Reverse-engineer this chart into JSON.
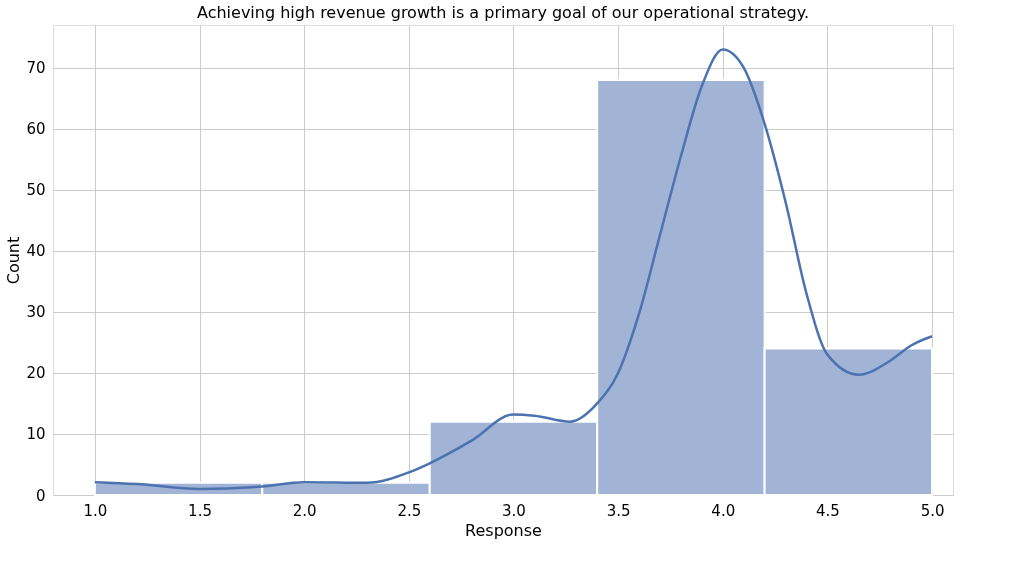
{
  "chart_data": {
    "type": "histogram",
    "title": "Achieving high revenue growth is a primary goal of our operational strategy.",
    "xlabel": "Response",
    "ylabel": "Count",
    "bins": [
      1.0,
      1.8,
      2.6,
      3.4,
      4.2,
      5.0
    ],
    "values": [
      2,
      2,
      12,
      68,
      24
    ],
    "color": "#a1b4d6",
    "series": [
      {
        "type": "line",
        "color": "#4c72b0",
        "x": [
          1.0,
          1.2,
          1.5,
          1.8,
          2.0,
          2.3,
          2.5,
          2.6,
          2.8,
          3.0,
          3.1,
          3.27,
          3.4,
          3.5,
          3.6,
          3.7,
          3.8,
          3.9,
          4.0,
          4.1,
          4.2,
          4.3,
          4.4,
          4.5,
          4.65,
          4.8,
          4.9,
          5.0
        ],
        "values": [
          2.1,
          1.8,
          1.0,
          1.4,
          2.1,
          2.0,
          3.7,
          5.2,
          8.9,
          13.2,
          13.0,
          12.0,
          15,
          20,
          29.7,
          42.6,
          55.5,
          67,
          73,
          70,
          60.8,
          48,
          33,
          23,
          19.7,
          22,
          24.5,
          26
        ]
      }
    ],
    "xlim": [
      0.8,
      5.1
    ],
    "xticks": [
      {
        "value": 1.0,
        "label": "1.0"
      },
      1.5,
      {
        "value": 2.0,
        "label": "2.0"
      },
      2.5,
      {
        "value": 3.0,
        "label": "3.0"
      },
      3.5,
      {
        "value": 4.0,
        "label": "4.0"
      },
      4.5,
      {
        "value": 5.0,
        "label": "5.0"
      }
    ],
    "ylim": [
      0,
      77
    ],
    "yticks": [
      0,
      10,
      20,
      30,
      40,
      50,
      60,
      70
    ],
    "grid": true
  }
}
